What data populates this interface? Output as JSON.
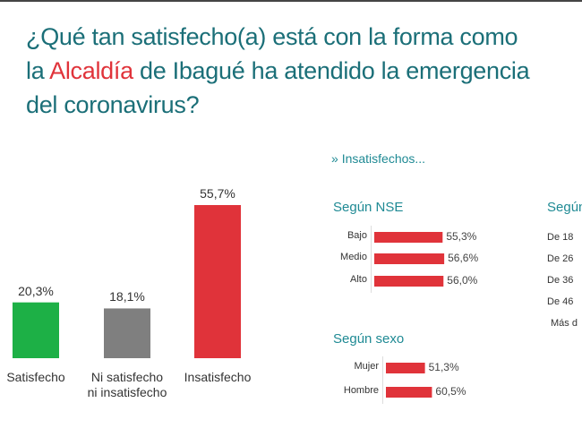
{
  "title": {
    "line1": "¿Qué tan satisfecho(a) está con la forma como",
    "line2_pre": "la ",
    "line2_highlight": "Alcaldía",
    "line2_post": " de Ibagué ha atendido la emergencia",
    "line3": "del coronavirus?"
  },
  "colors": {
    "title": "#1b6f78",
    "highlight": "#e0333a",
    "satisfecho": "#1db046",
    "neutral": "#7f7f7f",
    "insatisfecho": "#e0333a",
    "subtitle": "#1f8a94"
  },
  "chart_data": [
    {
      "type": "bar",
      "title": "",
      "categories": [
        "Satisfecho",
        "Ni satisfecho ni insatisfecho",
        "Insatisfecho"
      ],
      "category_lines": [
        [
          "Satisfecho"
        ],
        [
          "Ni satisfecho",
          "ni insatisfecho"
        ],
        [
          "Insatisfecho"
        ]
      ],
      "values": [
        20.3,
        18.1,
        55.7
      ],
      "value_labels": [
        "20,3%",
        "18,1%",
        "55,7%"
      ],
      "bar_colors": [
        "#1db046",
        "#7f7f7f",
        "#e0333a"
      ],
      "ylim": [
        0,
        60
      ]
    },
    {
      "type": "bar",
      "orientation": "horizontal",
      "section": "Insatisfechos...",
      "title": "Según NSE",
      "categories": [
        "Bajo",
        "Medio",
        "Alto"
      ],
      "values": [
        55.3,
        56.6,
        56.0
      ],
      "value_labels": [
        "55,3%",
        "56,6%",
        "56,0%"
      ]
    },
    {
      "type": "bar",
      "orientation": "horizontal",
      "title": "Según sexo",
      "categories": [
        "Mujer",
        "Hombre"
      ],
      "values": [
        51.3,
        60.5
      ],
      "value_labels": [
        "51,3%",
        "60,5%"
      ]
    },
    {
      "type": "bar",
      "orientation": "horizontal",
      "title": "Según",
      "categories": [
        "De 18",
        "De 26",
        "De 36",
        "De 46",
        "Más d"
      ]
    }
  ]
}
